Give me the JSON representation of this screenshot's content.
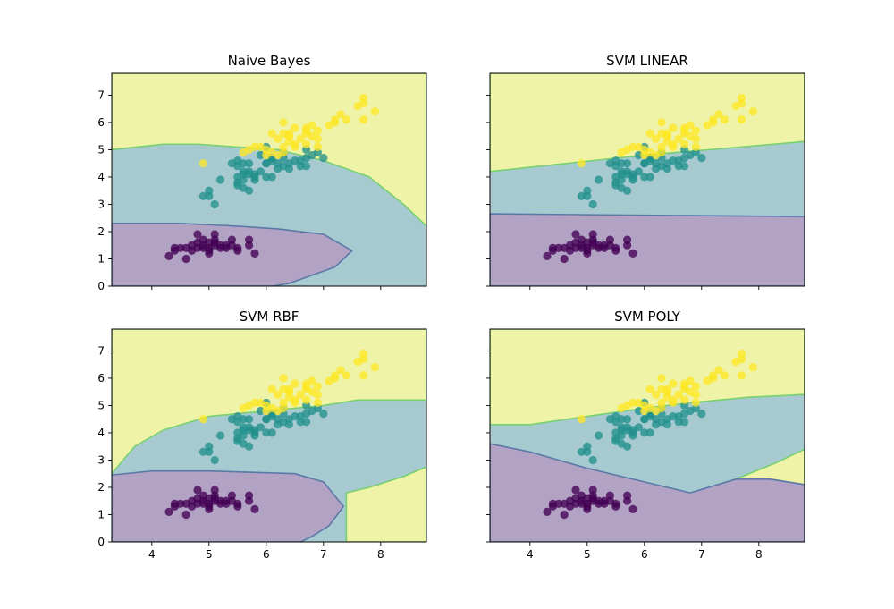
{
  "figure": {
    "background": "#ffffff"
  },
  "colors": {
    "class0": "#440154",
    "class1": "#21918c",
    "class2": "#fde725",
    "region0": "#b2a3c4",
    "region1": "#a7cad1",
    "region2": "#eff3a8",
    "boundary_low": "#5b79a6",
    "boundary_high": "#78d06f"
  },
  "points": {
    "class0": [
      [
        4.4,
        1.3
      ],
      [
        4.7,
        1.5
      ],
      [
        5.1,
        1.5
      ],
      [
        5.4,
        1.7
      ],
      [
        4.6,
        1.4
      ],
      [
        5.0,
        1.6
      ],
      [
        4.9,
        1.5
      ],
      [
        5.3,
        1.5
      ],
      [
        4.8,
        1.6
      ],
      [
        5.2,
        1.4
      ],
      [
        5.5,
        1.3
      ],
      [
        4.5,
        1.4
      ],
      [
        5.0,
        1.4
      ],
      [
        5.1,
        1.9
      ],
      [
        4.9,
        1.7
      ],
      [
        5.7,
        1.5
      ],
      [
        5.8,
        1.2
      ],
      [
        4.3,
        1.1
      ],
      [
        4.6,
        1.0
      ],
      [
        5.1,
        1.7
      ],
      [
        5.4,
        1.5
      ],
      [
        4.8,
        1.4
      ],
      [
        5.0,
        1.3
      ],
      [
        5.2,
        1.5
      ],
      [
        5.5,
        1.4
      ],
      [
        4.7,
        1.3
      ],
      [
        4.4,
        1.4
      ],
      [
        5.3,
        1.4
      ],
      [
        5.0,
        1.2
      ],
      [
        4.9,
        1.4
      ],
      [
        5.1,
        1.6
      ],
      [
        4.8,
        1.9
      ],
      [
        5.7,
        1.7
      ]
    ],
    "class1": [
      [
        7.0,
        4.7
      ],
      [
        6.4,
        4.5
      ],
      [
        6.9,
        4.9
      ],
      [
        5.5,
        4.0
      ],
      [
        6.5,
        4.6
      ],
      [
        5.7,
        4.5
      ],
      [
        6.3,
        4.7
      ],
      [
        4.9,
        3.3
      ],
      [
        6.6,
        4.6
      ],
      [
        5.2,
        3.9
      ],
      [
        5.0,
        3.5
      ],
      [
        5.9,
        4.2
      ],
      [
        6.0,
        4.0
      ],
      [
        6.1,
        4.7
      ],
      [
        5.6,
        3.6
      ],
      [
        6.7,
        4.4
      ],
      [
        5.6,
        4.5
      ],
      [
        5.8,
        4.1
      ],
      [
        6.2,
        4.5
      ],
      [
        5.6,
        3.9
      ],
      [
        5.9,
        4.8
      ],
      [
        6.1,
        4.0
      ],
      [
        6.3,
        4.9
      ],
      [
        6.1,
        4.7
      ],
      [
        6.4,
        4.3
      ],
      [
        6.6,
        4.4
      ],
      [
        6.8,
        4.8
      ],
      [
        6.7,
        5.0
      ],
      [
        6.0,
        4.5
      ],
      [
        5.7,
        3.5
      ],
      [
        5.5,
        3.8
      ],
      [
        5.5,
        3.7
      ],
      [
        5.8,
        3.9
      ],
      [
        6.0,
        5.1
      ],
      [
        5.4,
        4.5
      ],
      [
        6.0,
        4.5
      ],
      [
        6.7,
        4.7
      ],
      [
        6.3,
        4.4
      ],
      [
        5.6,
        4.1
      ],
      [
        5.5,
        4.4
      ],
      [
        5.5,
        4.6
      ],
      [
        6.1,
        4.6
      ],
      [
        5.8,
        4.0
      ],
      [
        5.0,
        3.3
      ],
      [
        5.6,
        4.2
      ],
      [
        5.7,
        4.2
      ],
      [
        6.2,
        4.3
      ],
      [
        5.1,
        3.0
      ],
      [
        5.7,
        4.1
      ]
    ],
    "class2": [
      [
        6.3,
        6.0
      ],
      [
        5.8,
        5.1
      ],
      [
        7.1,
        5.9
      ],
      [
        6.3,
        5.6
      ],
      [
        6.5,
        5.8
      ],
      [
        7.6,
        6.6
      ],
      [
        4.9,
        4.5
      ],
      [
        7.3,
        6.3
      ],
      [
        6.7,
        5.8
      ],
      [
        7.2,
        6.1
      ],
      [
        6.4,
        5.3
      ],
      [
        6.8,
        5.5
      ],
      [
        5.7,
        5.0
      ],
      [
        6.4,
        5.5
      ],
      [
        7.7,
        6.7
      ],
      [
        7.7,
        6.9
      ],
      [
        6.0,
        5.0
      ],
      [
        6.9,
        5.7
      ],
      [
        5.6,
        4.9
      ],
      [
        6.3,
        4.9
      ],
      [
        6.7,
        5.7
      ],
      [
        7.2,
        6.0
      ],
      [
        6.2,
        4.8
      ],
      [
        6.1,
        4.9
      ],
      [
        6.4,
        5.6
      ],
      [
        7.4,
        6.1
      ],
      [
        7.9,
        6.4
      ],
      [
        6.1,
        5.6
      ],
      [
        7.7,
        6.1
      ],
      [
        6.4,
        5.5
      ],
      [
        6.0,
        4.8
      ],
      [
        6.9,
        5.4
      ],
      [
        6.7,
        5.6
      ],
      [
        6.9,
        5.1
      ],
      [
        6.8,
        5.9
      ],
      [
        6.7,
        5.2
      ],
      [
        6.5,
        5.2
      ],
      [
        6.2,
        5.4
      ],
      [
        5.9,
        5.1
      ],
      [
        6.5,
        5.1
      ],
      [
        6.3,
        5.1
      ],
      [
        6.6,
        5.4
      ]
    ]
  },
  "chart_data": [
    {
      "type": "scatter",
      "title": "Naive Bayes",
      "xlim": [
        3.3,
        8.8
      ],
      "ylim": [
        0,
        7.8
      ],
      "xticks": [
        "4",
        "5",
        "6",
        "7",
        "8"
      ],
      "yticks": [
        "0",
        "1",
        "2",
        "3",
        "4",
        "5",
        "6",
        "7"
      ],
      "show_xticklabels": false,
      "show_yticklabels": true,
      "regions": [
        {
          "class": 2,
          "polygon": [
            [
              3.3,
              7.8
            ],
            [
              8.8,
              7.8
            ],
            [
              8.8,
              2.2
            ],
            [
              8.4,
              3.0
            ],
            [
              7.8,
              4.0
            ],
            [
              7.0,
              4.6
            ],
            [
              6.2,
              5.0
            ],
            [
              5.5,
              5.1
            ],
            [
              4.8,
              5.2
            ],
            [
              4.2,
              5.2
            ],
            [
              3.3,
              5.0
            ]
          ]
        },
        {
          "class": 0,
          "polygon": [
            [
              3.3,
              2.3
            ],
            [
              4.5,
              2.3
            ],
            [
              5.5,
              2.2
            ],
            [
              6.2,
              2.1
            ],
            [
              7.0,
              1.9
            ],
            [
              7.5,
              1.3
            ],
            [
              7.2,
              0.7
            ],
            [
              6.8,
              0.4
            ],
            [
              6.4,
              0.1
            ],
            [
              6.1,
              0
            ],
            [
              3.3,
              0
            ]
          ]
        }
      ],
      "series": [
        {
          "class": 0,
          "points_ref": "class0"
        },
        {
          "class": 1,
          "points_ref": "class1"
        },
        {
          "class": 2,
          "points_ref": "class2"
        }
      ]
    },
    {
      "type": "scatter",
      "title": "SVM LINEAR",
      "xlim": [
        3.3,
        8.8
      ],
      "ylim": [
        0,
        7.8
      ],
      "xticks": [
        "4",
        "5",
        "6",
        "7",
        "8"
      ],
      "yticks": [
        "0",
        "1",
        "2",
        "3",
        "4",
        "5",
        "6",
        "7"
      ],
      "show_xticklabels": false,
      "show_yticklabels": false,
      "regions": [
        {
          "class": 2,
          "polygon": [
            [
              3.3,
              7.8
            ],
            [
              8.8,
              7.8
            ],
            [
              8.8,
              5.3
            ],
            [
              6.0,
              4.8
            ],
            [
              3.3,
              4.2
            ]
          ]
        },
        {
          "class": 0,
          "polygon": [
            [
              3.3,
              2.65
            ],
            [
              8.8,
              2.55
            ],
            [
              8.8,
              0
            ],
            [
              3.3,
              0
            ]
          ]
        }
      ],
      "series": [
        {
          "class": 0,
          "points_ref": "class0"
        },
        {
          "class": 1,
          "points_ref": "class1"
        },
        {
          "class": 2,
          "points_ref": "class2"
        }
      ]
    },
    {
      "type": "scatter",
      "title": "SVM RBF",
      "xlim": [
        3.3,
        8.8
      ],
      "ylim": [
        0,
        7.8
      ],
      "xticks": [
        "4",
        "5",
        "6",
        "7",
        "8"
      ],
      "yticks": [
        "0",
        "1",
        "2",
        "3",
        "4",
        "5",
        "6",
        "7"
      ],
      "show_xticklabels": true,
      "show_yticklabels": true,
      "regions": [
        {
          "class": 2,
          "polygon": [
            [
              3.3,
              7.8
            ],
            [
              8.8,
              7.8
            ],
            [
              8.8,
              5.2
            ],
            [
              7.6,
              5.2
            ],
            [
              7.0,
              5.0
            ],
            [
              6.0,
              4.8
            ],
            [
              5.0,
              4.6
            ],
            [
              4.2,
              4.1
            ],
            [
              3.7,
              3.5
            ],
            [
              3.3,
              2.5
            ]
          ]
        },
        {
          "class": 2,
          "polygon": [
            [
              8.8,
              2.75
            ],
            [
              8.8,
              0
            ],
            [
              7.4,
              0
            ],
            [
              7.4,
              1.8
            ],
            [
              7.8,
              2.0
            ],
            [
              8.4,
              2.4
            ]
          ]
        },
        {
          "class": 0,
          "polygon": [
            [
              3.3,
              2.45
            ],
            [
              4.0,
              2.6
            ],
            [
              5.0,
              2.6
            ],
            [
              6.5,
              2.5
            ],
            [
              7.0,
              2.2
            ],
            [
              7.35,
              1.3
            ],
            [
              7.1,
              0.6
            ],
            [
              6.8,
              0.2
            ],
            [
              6.6,
              0
            ],
            [
              3.3,
              0
            ]
          ]
        }
      ],
      "series": [
        {
          "class": 0,
          "points_ref": "class0"
        },
        {
          "class": 1,
          "points_ref": "class1"
        },
        {
          "class": 2,
          "points_ref": "class2"
        }
      ]
    },
    {
      "type": "scatter",
      "title": "SVM POLY",
      "xlim": [
        3.3,
        8.8
      ],
      "ylim": [
        0,
        7.8
      ],
      "xticks": [
        "4",
        "5",
        "6",
        "7",
        "8"
      ],
      "yticks": [
        "0",
        "1",
        "2",
        "3",
        "4",
        "5",
        "6",
        "7"
      ],
      "show_xticklabels": true,
      "show_yticklabels": false,
      "regions": [
        {
          "class": 2,
          "polygon": [
            [
              3.3,
              7.8
            ],
            [
              8.8,
              7.8
            ],
            [
              8.8,
              5.4
            ],
            [
              7.8,
              5.3
            ],
            [
              6.8,
              5.1
            ],
            [
              6.0,
              4.9
            ],
            [
              5.0,
              4.6
            ],
            [
              4.0,
              4.3
            ],
            [
              3.3,
              4.3
            ]
          ]
        },
        {
          "class": 2,
          "polygon": [
            [
              8.8,
              3.4
            ],
            [
              8.8,
              2.1
            ],
            [
              8.2,
              2.3
            ],
            [
              7.6,
              2.3
            ],
            [
              8.3,
              2.9
            ]
          ]
        },
        {
          "class": 0,
          "polygon": [
            [
              3.3,
              3.6
            ],
            [
              4.0,
              3.3
            ],
            [
              5.0,
              2.7
            ],
            [
              6.0,
              2.2
            ],
            [
              6.8,
              1.8
            ],
            [
              7.6,
              2.3
            ],
            [
              8.2,
              2.3
            ],
            [
              8.8,
              2.1
            ],
            [
              8.8,
              0
            ],
            [
              3.3,
              0
            ]
          ]
        }
      ],
      "series": [
        {
          "class": 0,
          "points_ref": "class0"
        },
        {
          "class": 1,
          "points_ref": "class1"
        },
        {
          "class": 2,
          "points_ref": "class2"
        }
      ]
    }
  ]
}
